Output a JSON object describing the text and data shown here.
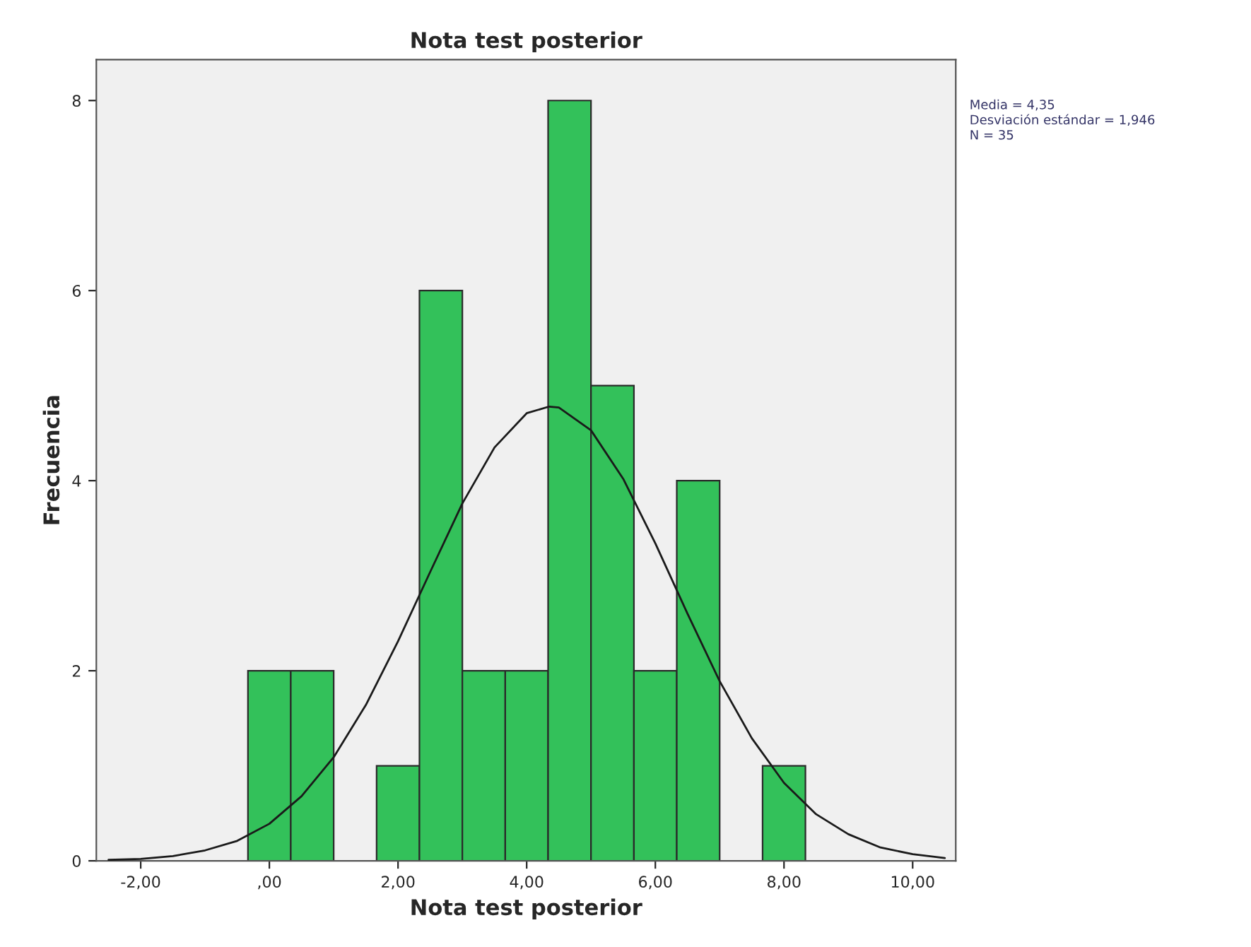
{
  "chart_data": {
    "type": "histogram",
    "title": "Nota test posterior",
    "xlabel": "Nota test posterior",
    "ylabel": "Frecuencia",
    "series": [
      {
        "color": "#33c15a",
        "bins": [
          -0.333,
          0.333,
          1.0,
          1.667,
          2.333,
          3.0,
          3.667,
          4.333,
          5.0,
          5.667,
          6.333,
          7.0,
          7.667,
          8.333
        ],
        "values": [
          2,
          2,
          0,
          1,
          6,
          2,
          2,
          8,
          5,
          2,
          4,
          0,
          1
        ]
      },
      {
        "type": "line",
        "color": "#1a1a1a",
        "x": [
          -2.5,
          -2,
          -1.5,
          -1,
          -0.5,
          0,
          0.5,
          1,
          1.5,
          2,
          2.5,
          3,
          3.5,
          4,
          4.35,
          4.5,
          5,
          5.5,
          6,
          6.5,
          7,
          7.5,
          8,
          8.5,
          9,
          9.5,
          10,
          10.5
        ],
        "values": [
          0.01,
          0.02,
          0.05,
          0.11,
          0.21,
          0.39,
          0.68,
          1.09,
          1.64,
          2.31,
          3.04,
          3.76,
          4.35,
          4.71,
          4.78,
          4.77,
          4.53,
          4.02,
          3.34,
          2.6,
          1.89,
          1.29,
          0.82,
          0.49,
          0.28,
          0.14,
          0.07,
          0.03
        ]
      }
    ],
    "xlim": [
      -2.69,
      10.67
    ],
    "ylim": [
      0,
      8.43
    ],
    "xticks": [
      {
        "value": -2,
        "label": "-2,00"
      },
      {
        "value": 0,
        "label": ",00"
      },
      {
        "value": 2,
        "label": "2,00"
      },
      {
        "value": 4,
        "label": "4,00"
      },
      {
        "value": 6,
        "label": "6,00"
      },
      {
        "value": 8,
        "label": "8,00"
      },
      {
        "value": 10,
        "label": "10,00"
      }
    ],
    "yticks": [
      0,
      2,
      4,
      6,
      8
    ],
    "grid": false,
    "marker": "none",
    "line_style": "solid",
    "annotations": [
      "Media = 4,35",
      "Desviación estándar = 1,946",
      "N = 35"
    ]
  }
}
